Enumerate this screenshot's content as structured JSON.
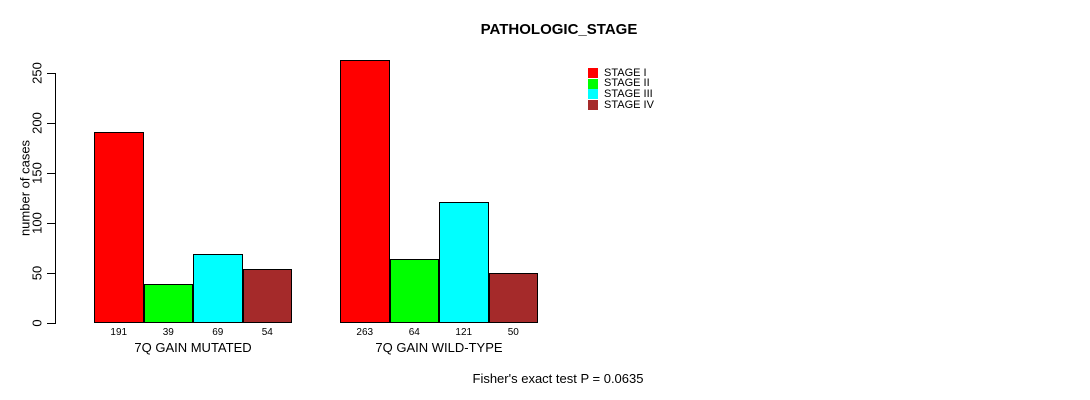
{
  "title": "PATHOLOGIC_STAGE",
  "footer": "Fisher's exact test P = 0.0635",
  "chart_data": {
    "type": "bar",
    "title": "PATHOLOGIC_STAGE",
    "xlabel": "",
    "ylabel": "number of cases",
    "ylim": [
      0,
      250
    ],
    "yticks": [
      0,
      50,
      100,
      150,
      200,
      250
    ],
    "grid": false,
    "legend_position": "top-right",
    "categories": [
      "7Q GAIN MUTATED",
      "7Q GAIN WILD-TYPE"
    ],
    "series": [
      {
        "name": "STAGE I",
        "color": "#FF0000",
        "values": [
          191,
          263
        ]
      },
      {
        "name": "STAGE II",
        "color": "#00FF00",
        "values": [
          39,
          64
        ]
      },
      {
        "name": "STAGE III",
        "color": "#00FFFF",
        "values": [
          69,
          121
        ]
      },
      {
        "name": "STAGE IV",
        "color": "#A52A2A",
        "values": [
          54,
          50
        ]
      }
    ],
    "bar_value_labels": [
      [
        191,
        39,
        69,
        54
      ],
      [
        263,
        64,
        121,
        50
      ]
    ],
    "annotation": "Fisher's exact test P = 0.0635"
  }
}
